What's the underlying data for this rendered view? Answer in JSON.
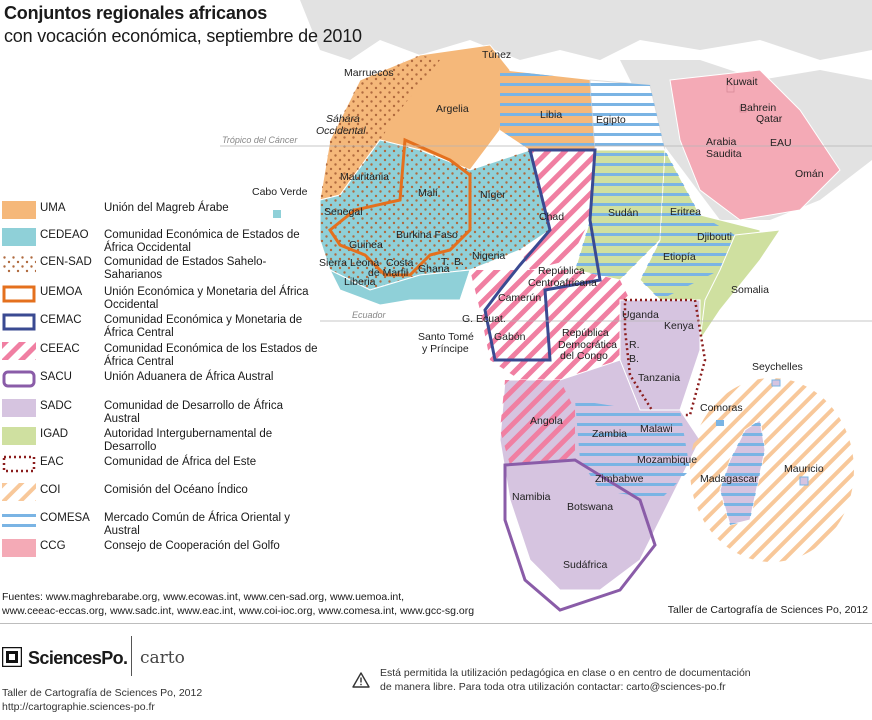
{
  "title": {
    "line1": "Conjuntos regionales africanos",
    "line2": "con vocación económica, septiembre de 2010"
  },
  "map_lines": {
    "tropic": "Trópico del Cáncer",
    "equator": "Ecuador"
  },
  "legend": [
    {
      "code": "UMA",
      "name": "Unión del Magreb Árabe",
      "pattern": "fill",
      "color": "#f5b87a"
    },
    {
      "code": "CEDEAO",
      "name": "Comunidad Económica de Estados de África Occidental",
      "pattern": "fill",
      "color": "#8fd0d8"
    },
    {
      "code": "CEN-SAD",
      "name": "Comunidad de Estados Sahelo-Saharianos",
      "pattern": "dots",
      "color": "#c8794e"
    },
    {
      "code": "UEMOA",
      "name": "Unión Económica y Monetaria del África Occidental",
      "pattern": "outline",
      "color": "#e4701e"
    },
    {
      "code": "CEMAC",
      "name": "Comunidad Económica y Monetaria de África Central",
      "pattern": "outline",
      "color": "#3a4a92"
    },
    {
      "code": "CEEAC",
      "name": "Comunidad Económica de los Estados de África Central",
      "pattern": "diagonal",
      "color": "#f07fa2"
    },
    {
      "code": "SACU",
      "name": "Unión Aduanera de África Austral",
      "pattern": "outline",
      "color": "#8a5ca8"
    },
    {
      "code": "SADC",
      "name": "Comunidad de Desarrollo de África Austral",
      "pattern": "fill",
      "color": "#d6c4e0"
    },
    {
      "code": "IGAD",
      "name": "Autoridad Intergubernamental de Desarrollo",
      "pattern": "fill",
      "color": "#cfe0a0"
    },
    {
      "code": "EAC",
      "name": "Comunidad de África del Este",
      "pattern": "dotted-outline",
      "color": "#8b1d1d"
    },
    {
      "code": "COI",
      "name": "Comisión del Océano Índico",
      "pattern": "diagonal-light",
      "color": "#f8c89a"
    },
    {
      "code": "COMESA",
      "name": "Mercado Común de África Oriental y Austral",
      "pattern": "stripes",
      "color": "#7ab4e4"
    },
    {
      "code": "CCG",
      "name": "Consejo de Cooperación del Golfo",
      "pattern": "fill",
      "color": "#f4aab6"
    }
  ],
  "country_labels": [
    "Marruecos",
    "Túnez",
    "Argelia",
    "Sáhara",
    "Occidental",
    "Libia",
    "Egipto",
    "Mauritania",
    "Malí",
    "Níger",
    "Chad",
    "Sudán",
    "Eritrea",
    "Senegal",
    "Guinea",
    "Burkina Faso",
    "Nigeria",
    "Sierra",
    "Leona",
    "Costa",
    "de Marfil",
    "Ghana",
    "T.",
    "B.",
    "Liberia",
    "Djibouti",
    "Etiopía",
    "Somalia",
    "República",
    "Centroafricana",
    "Camerún",
    "G. Ecuat.",
    "Gabón",
    "Uganda",
    "Kenya",
    "República",
    "Democrática",
    "del Congo",
    "R.",
    "B.",
    "Tanzania",
    "Angola",
    "Zambia",
    "Malawi",
    "Mozambique",
    "Zimbabwe",
    "Namibia",
    "Botswana",
    "Sudáfrica",
    "Cabo Verde",
    "Santo Tomé",
    "y Príncipe",
    "Seychelles",
    "Comoras",
    "Madagascar",
    "Mauricio",
    "Kuwait",
    "Bahrein",
    "Qatar",
    "Arabia",
    "Saudita",
    "EAU",
    "Omán"
  ],
  "sources": {
    "line1": "Fuentes: www.maghrebarabe.org, www.ecowas.int, www.cen-sad.org, www.uemoa.int,",
    "line2": "www.ceeac-eccas.org, www.sadc.int, www.eac.int, www.coi-ioc.org, www.comesa.int, www.gcc-sg.org"
  },
  "credit": "Taller de Cartografía de Sciences Po, 2012",
  "logo": {
    "text": "SciencesPo.",
    "carto": "carto"
  },
  "footer": {
    "line1": "Taller de Cartografía de Sciences Po, 2012",
    "line2": "http://cartographie.sciences-po.fr"
  },
  "notice": {
    "line1": "Está permitida la utilización pedagógica en clase o en centro de documentación",
    "line2": "de manera libre. Para toda otra utilización contactar: carto@sciences-po.fr"
  }
}
